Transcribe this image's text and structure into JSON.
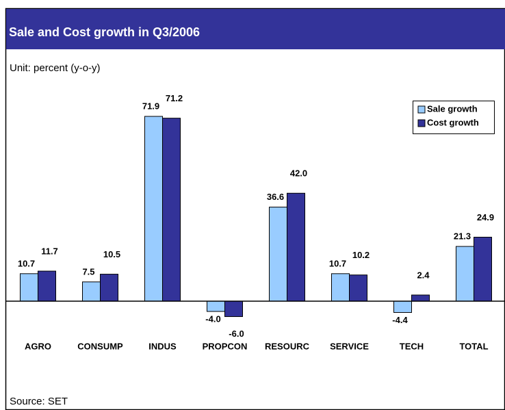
{
  "chart_data": {
    "type": "bar",
    "title": "Sale and Cost growth in Q3/2006",
    "subtitle": "Unit: percent (y-o-y)",
    "source": "Source: SET",
    "categories": [
      "AGRO",
      "CONSUMP",
      "INDUS",
      "PROPCON",
      "RESOURC",
      "SERVICE",
      "TECH",
      "TOTAL"
    ],
    "series": [
      {
        "name": "Sale growth",
        "color": "#99ccff",
        "values": [
          10.7,
          7.5,
          71.9,
          -4.0,
          36.6,
          10.7,
          -4.4,
          21.3
        ],
        "value_labels": [
          "10.7",
          "7.5",
          "71.9",
          "-4.0",
          "36.6",
          "10.7",
          "-4.4",
          "21.3"
        ]
      },
      {
        "name": "Cost growth",
        "color": "#333399",
        "values": [
          11.7,
          10.5,
          71.2,
          -6.0,
          42.0,
          10.2,
          2.4,
          24.9
        ],
        "value_labels": [
          "11.7",
          "10.5",
          "71.2",
          "-6.0",
          "42.0",
          "10.2",
          "2.4",
          "24.9"
        ]
      }
    ],
    "ylim": [
      -20,
      80
    ],
    "grid": false
  }
}
